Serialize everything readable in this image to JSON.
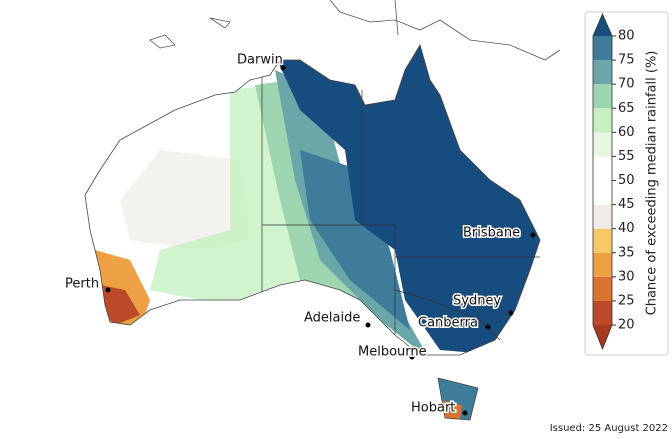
{
  "map": {
    "cities": [
      "Darwin",
      "Perth",
      "Adelaide",
      "Melbourne",
      "Canberra",
      "Sydney",
      "Brisbane",
      "Hobart"
    ],
    "issued": "Issued: 25 August 2022"
  },
  "colorbar": {
    "label": "Chance of exceeding median rainfall (%)",
    "ticks": [
      20,
      25,
      30,
      35,
      40,
      45,
      50,
      55,
      60,
      65,
      70,
      75,
      80
    ],
    "band_colors": [
      "#bb4a29",
      "#d9732f",
      "#eda044",
      "#f8c866",
      "#f0ede8",
      "#ffffff",
      "#ffffff",
      "#e6f7df",
      "#c6f0c0",
      "#9ed6b1",
      "#6ba6a8",
      "#3e7c9a"
    ],
    "under_color": "#a8391f",
    "over_color": "#174c7f"
  }
}
